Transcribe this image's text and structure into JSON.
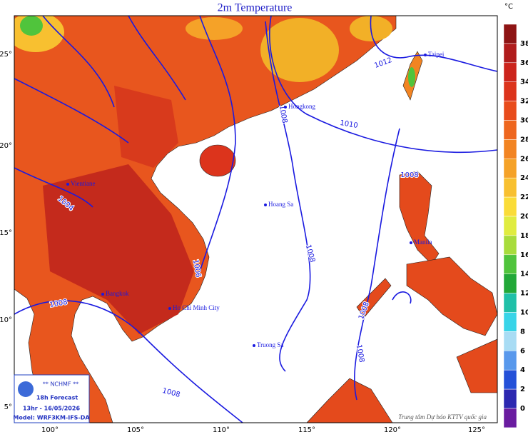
{
  "title": "2m Temperature",
  "unit": "°C",
  "colorbar": {
    "labels": [
      38,
      36,
      34,
      32,
      30,
      28,
      26,
      24,
      22,
      20,
      18,
      16,
      14,
      12,
      10,
      8,
      6,
      4,
      2,
      0
    ],
    "colors": [
      "#8e1414",
      "#b01c1c",
      "#cc241c",
      "#dc341c",
      "#e84c1c",
      "#ee661e",
      "#f28422",
      "#f5a228",
      "#f8c030",
      "#fadc38",
      "#e0ec40",
      "#a8dc3c",
      "#50c43c",
      "#22a838",
      "#20c0a8",
      "#38d4e8",
      "#a8dcf4",
      "#5898ec",
      "#2450d8",
      "#2c28b0",
      "#6a1ca0"
    ]
  },
  "lat_labels": [
    "25°",
    "20°",
    "15°",
    "10°",
    "5°"
  ],
  "lon_labels": [
    "100°",
    "105°",
    "110°",
    "115°",
    "120°",
    "125°"
  ],
  "isobar_labels": [
    "1012",
    "1010",
    "1008",
    "1008",
    "1008",
    "1008",
    "1008",
    "1008",
    "1006",
    "1004",
    "1008"
  ],
  "places": [
    "Taipei",
    "Hongkong",
    "Hoang Sa",
    "Manila",
    "Truong Sa",
    "Vientiane",
    "Bangkok",
    "Ho Chi Minh City"
  ],
  "info_box": {
    "agency": "** NCHMF **",
    "forecast": "18h Forecast",
    "time": "13hr - 16/05/2026",
    "model": "Model: WRF3KM-IFS-DA"
  },
  "credit": "Trung tâm Dự báo KTTV quốc gia"
}
